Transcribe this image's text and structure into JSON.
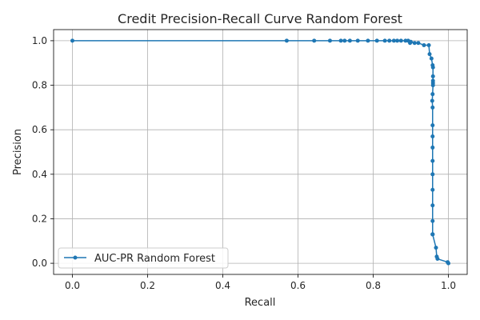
{
  "chart_data": {
    "type": "line",
    "title": "Credit Precision-Recall Curve Random Forest",
    "xlabel": "Recall",
    "ylabel": "Precision",
    "xlim": [
      -0.05,
      1.05
    ],
    "ylim": [
      -0.05,
      1.05
    ],
    "x_ticks": [
      "0.0",
      "0.2",
      "0.4",
      "0.6",
      "0.8",
      "1.0"
    ],
    "y_ticks": [
      "0.0",
      "0.2",
      "0.4",
      "0.6",
      "0.8",
      "1.0"
    ],
    "grid": true,
    "legend_position": "lower-left",
    "series": [
      {
        "name": "AUC-PR Random Forest",
        "color": "#1f77b4",
        "marker": "dot",
        "x": [
          0.0,
          0.57,
          0.643,
          0.685,
          0.714,
          0.724,
          0.738,
          0.759,
          0.786,
          0.81,
          0.831,
          0.843,
          0.855,
          0.864,
          0.874,
          0.886,
          0.893,
          0.898,
          0.9,
          0.91,
          0.92,
          0.935,
          0.948,
          0.95,
          0.955,
          0.958,
          0.959,
          0.959,
          0.959,
          0.959,
          0.959,
          0.958,
          0.957,
          0.958,
          0.958,
          0.958,
          0.958,
          0.958,
          0.958,
          0.958,
          0.958,
          0.958,
          0.958,
          0.958,
          0.958,
          0.967,
          0.969,
          0.971,
          0.998,
          1.0
        ],
        "y": [
          1.0,
          1.0,
          1.0,
          1.0,
          1.0,
          1.0,
          1.0,
          1.0,
          1.0,
          1.0,
          1.0,
          1.0,
          1.0,
          1.0,
          1.0,
          1.0,
          1.0,
          0.99,
          0.995,
          0.99,
          0.99,
          0.98,
          0.98,
          0.94,
          0.92,
          0.89,
          0.88,
          0.84,
          0.82,
          0.81,
          0.8,
          0.76,
          0.73,
          0.7,
          0.62,
          0.57,
          0.52,
          0.46,
          0.4,
          0.33,
          0.26,
          0.19,
          0.13,
          0.13,
          0.13,
          0.07,
          0.03,
          0.02,
          0.005,
          0.0
        ]
      }
    ]
  }
}
